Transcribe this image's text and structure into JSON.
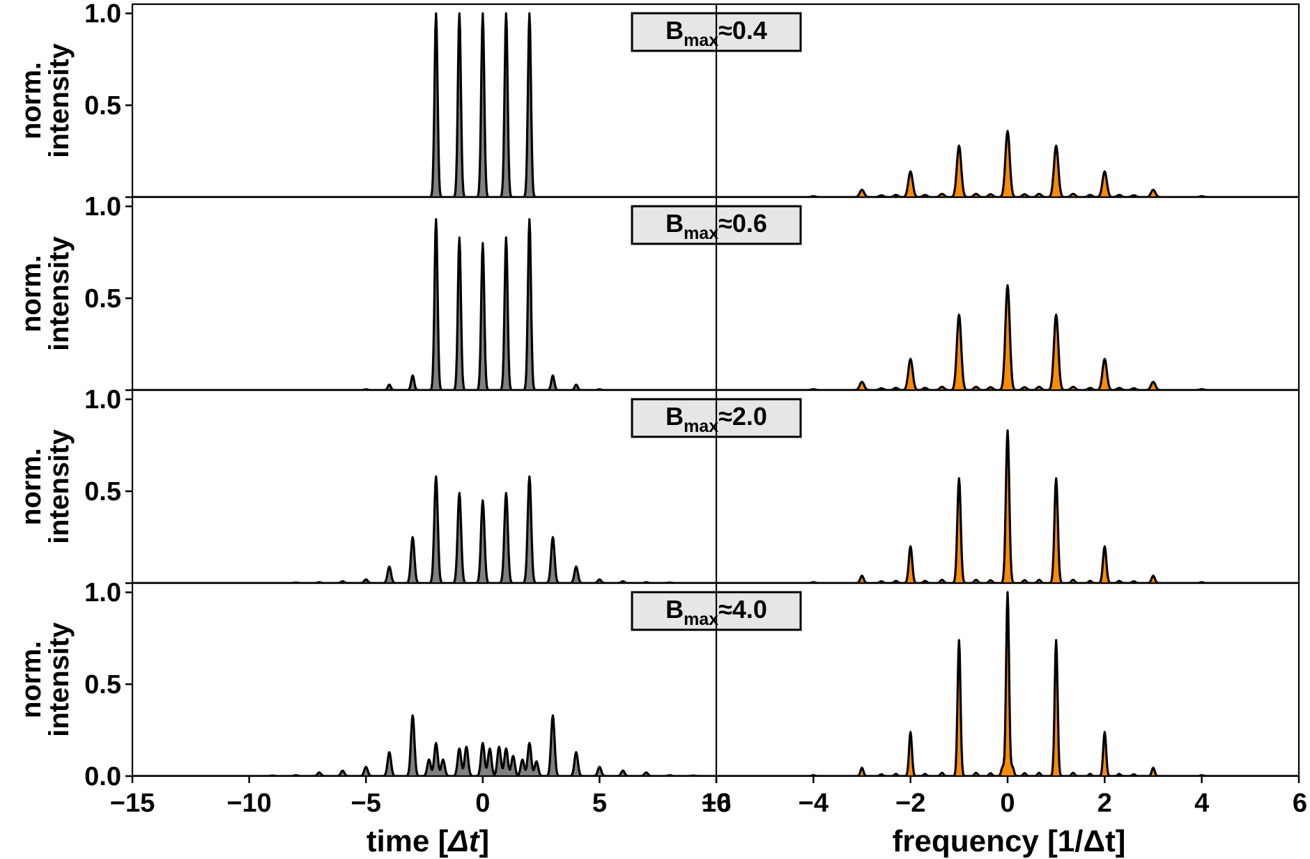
{
  "chart_data": {
    "type": "line",
    "layout": "4 rows x 2 columns (time | frequency), filled peak profiles",
    "colors": {
      "time_fill": "#808080",
      "frequency_fill": "#ff8c00",
      "line": "#000000",
      "badge_bg": "#e6e6e6"
    },
    "x_time": {
      "label_prefix": "time [",
      "label_symbol": "Δt",
      "label_suffix": "]",
      "xlim": [
        -15,
        10
      ],
      "ticks": [
        -15,
        -10,
        -5,
        0,
        5,
        10
      ],
      "tick_labels": [
        "−15",
        "−10",
        "−5",
        "0",
        "5",
        "10"
      ]
    },
    "x_frequency": {
      "label": "frequency [1/Δt]",
      "xlim": [
        -6,
        6
      ],
      "ticks": [
        -6,
        -4,
        -2,
        0,
        2,
        4,
        6
      ],
      "tick_labels": [
        "−6",
        "−4",
        "−2",
        "0",
        "2",
        "4",
        "6"
      ]
    },
    "ylabel_line1": "norm.",
    "ylabel_line2": "intensity",
    "ylim": [
      0,
      1.05
    ],
    "y_ticks": [
      0.0,
      0.5,
      1.0
    ],
    "y_tick_labels": [
      "0.0",
      "0.5",
      "1.0"
    ],
    "panels": [
      {
        "label_main": "B",
        "label_sub": "max",
        "label_value": "≈0.4",
        "time_peaks": [
          [
            -2,
            1.0
          ],
          [
            -1,
            1.0
          ],
          [
            0,
            1.0
          ],
          [
            1,
            1.0
          ],
          [
            2,
            1.0
          ]
        ],
        "time_peak_width": 0.065,
        "freq_peaks": [
          [
            -4,
            0.005
          ],
          [
            -3,
            0.04
          ],
          [
            -2,
            0.14
          ],
          [
            -1,
            0.28
          ],
          [
            0,
            0.36
          ],
          [
            1,
            0.28
          ],
          [
            2,
            0.14
          ],
          [
            3,
            0.04
          ],
          [
            4,
            0.005
          ],
          [
            -2.6,
            0.01
          ],
          [
            -2.3,
            0.012
          ],
          [
            -1.7,
            0.012
          ],
          [
            -1.35,
            0.018
          ],
          [
            -0.65,
            0.018
          ],
          [
            -0.35,
            0.016
          ],
          [
            0.35,
            0.016
          ],
          [
            0.65,
            0.018
          ],
          [
            1.35,
            0.018
          ],
          [
            1.7,
            0.012
          ],
          [
            2.3,
            0.012
          ],
          [
            2.6,
            0.01
          ]
        ],
        "freq_peak_width": 0.045
      },
      {
        "label_main": "B",
        "label_sub": "max",
        "label_value": "≈0.6",
        "time_peaks": [
          [
            -5,
            0.005
          ],
          [
            -4,
            0.03
          ],
          [
            -3,
            0.08
          ],
          [
            -2,
            0.93
          ],
          [
            -1,
            0.83
          ],
          [
            0,
            0.8
          ],
          [
            1,
            0.83
          ],
          [
            2,
            0.93
          ],
          [
            3,
            0.08
          ],
          [
            4,
            0.03
          ],
          [
            5,
            0.005
          ]
        ],
        "time_peak_width": 0.065,
        "freq_peaks": [
          [
            -4,
            0.005
          ],
          [
            -3,
            0.045
          ],
          [
            -2,
            0.17
          ],
          [
            -1,
            0.41
          ],
          [
            0,
            0.57
          ],
          [
            1,
            0.41
          ],
          [
            2,
            0.17
          ],
          [
            3,
            0.045
          ],
          [
            4,
            0.005
          ],
          [
            -2.6,
            0.01
          ],
          [
            -2.3,
            0.012
          ],
          [
            -1.7,
            0.012
          ],
          [
            -1.35,
            0.018
          ],
          [
            -0.65,
            0.018
          ],
          [
            -0.35,
            0.016
          ],
          [
            0.35,
            0.016
          ],
          [
            0.65,
            0.018
          ],
          [
            1.35,
            0.018
          ],
          [
            1.7,
            0.012
          ],
          [
            2.3,
            0.012
          ],
          [
            2.6,
            0.01
          ]
        ],
        "freq_peak_width": 0.045
      },
      {
        "label_main": "B",
        "label_sub": "max",
        "label_value": "≈2.0",
        "time_peaks": [
          [
            -8,
            0.003
          ],
          [
            -7,
            0.005
          ],
          [
            -6,
            0.01
          ],
          [
            -5,
            0.02
          ],
          [
            -4,
            0.09
          ],
          [
            -3,
            0.25
          ],
          [
            -2,
            0.58
          ],
          [
            -1,
            0.49
          ],
          [
            0,
            0.45
          ],
          [
            1,
            0.49
          ],
          [
            2,
            0.58
          ],
          [
            3,
            0.25
          ],
          [
            4,
            0.09
          ],
          [
            5,
            0.02
          ],
          [
            6,
            0.01
          ],
          [
            7,
            0.005
          ],
          [
            8,
            0.003
          ]
        ],
        "time_peak_width": 0.075,
        "freq_peaks": [
          [
            -4,
            0.005
          ],
          [
            -3,
            0.04
          ],
          [
            -2,
            0.2
          ],
          [
            -1,
            0.57
          ],
          [
            0,
            0.83
          ],
          [
            1,
            0.57
          ],
          [
            2,
            0.2
          ],
          [
            3,
            0.04
          ],
          [
            4,
            0.005
          ],
          [
            -2.6,
            0.01
          ],
          [
            -2.3,
            0.012
          ],
          [
            -1.7,
            0.012
          ],
          [
            -1.35,
            0.018
          ],
          [
            -0.65,
            0.018
          ],
          [
            -0.35,
            0.016
          ],
          [
            0.35,
            0.016
          ],
          [
            0.65,
            0.018
          ],
          [
            1.35,
            0.018
          ],
          [
            1.7,
            0.012
          ],
          [
            2.3,
            0.012
          ],
          [
            2.6,
            0.01
          ]
        ],
        "freq_peak_width": 0.035
      },
      {
        "label_main": "B",
        "label_sub": "max",
        "label_value": "≈4.0",
        "time_peaks": [
          [
            -9,
            0.003
          ],
          [
            -8,
            0.005
          ],
          [
            -7,
            0.02
          ],
          [
            -6,
            0.03
          ],
          [
            -5,
            0.05
          ],
          [
            -4,
            0.13
          ],
          [
            -3,
            0.33
          ],
          [
            -2,
            0.18
          ],
          [
            -1,
            0.15
          ],
          [
            0,
            0.18
          ],
          [
            1,
            0.15
          ],
          [
            2,
            0.18
          ],
          [
            3,
            0.33
          ],
          [
            4,
            0.13
          ],
          [
            5,
            0.05
          ],
          [
            6,
            0.03
          ],
          [
            7,
            0.02
          ],
          [
            8,
            0.005
          ],
          [
            9,
            0.003
          ],
          [
            -2.3,
            0.09
          ],
          [
            -1.7,
            0.09
          ],
          [
            -0.7,
            0.16
          ],
          [
            0.3,
            0.15
          ],
          [
            0.7,
            0.16
          ],
          [
            1.3,
            0.11
          ],
          [
            1.7,
            0.09
          ],
          [
            2.3,
            0.08
          ]
        ],
        "time_peak_width": 0.075,
        "freq_peaks": [
          [
            -4,
            0.005
          ],
          [
            -3,
            0.045
          ],
          [
            -2,
            0.24
          ],
          [
            -1,
            0.74
          ],
          [
            0,
            1.0
          ],
          [
            1,
            0.74
          ],
          [
            2,
            0.24
          ],
          [
            3,
            0.045
          ],
          [
            4,
            0.005
          ],
          [
            -0.1,
            0.05
          ],
          [
            0.1,
            0.05
          ],
          [
            -2.6,
            0.01
          ],
          [
            -2.3,
            0.012
          ],
          [
            -1.7,
            0.012
          ],
          [
            -1.35,
            0.018
          ],
          [
            -0.65,
            0.018
          ],
          [
            -0.35,
            0.016
          ],
          [
            0.35,
            0.016
          ],
          [
            0.65,
            0.018
          ],
          [
            1.35,
            0.018
          ],
          [
            1.7,
            0.012
          ],
          [
            2.3,
            0.012
          ],
          [
            2.6,
            0.01
          ]
        ],
        "freq_peak_width": 0.03
      }
    ]
  }
}
